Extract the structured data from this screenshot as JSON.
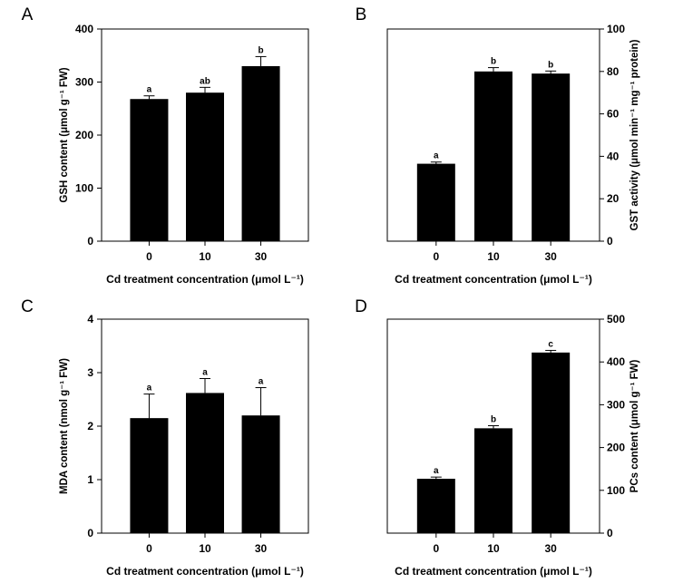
{
  "chart_data": [
    {
      "panel": "A",
      "type": "bar",
      "categories": [
        "0",
        "10",
        "30"
      ],
      "values": [
        268,
        280,
        330
      ],
      "errors": [
        6,
        10,
        18
      ],
      "significance": [
        "a",
        "ab",
        "b"
      ],
      "ylim": [
        0,
        400
      ],
      "yticks": [
        "0",
        "100",
        "200",
        "300",
        "400"
      ],
      "ylabel": "GSH content (μmol g⁻¹ FW)",
      "xlabel": "Cd treatment concentration (μmol L⁻¹)",
      "yaxis_side": "left",
      "color": "#000000"
    },
    {
      "panel": "B",
      "type": "bar",
      "categories": [
        "0",
        "10",
        "30"
      ],
      "values": [
        36.5,
        80,
        79
      ],
      "errors": [
        0.8,
        1.8,
        1.2
      ],
      "significance": [
        "a",
        "b",
        "b"
      ],
      "ylim": [
        0,
        100
      ],
      "yticks": [
        "0",
        "20",
        "40",
        "60",
        "80",
        "100"
      ],
      "ylabel": "GST activity (μmol min⁻¹ mg⁻¹ protein)",
      "xlabel": "Cd treatment concentration (μmol L⁻¹)",
      "yaxis_side": "right",
      "color": "#000000"
    },
    {
      "panel": "C",
      "type": "bar",
      "categories": [
        "0",
        "10",
        "30"
      ],
      "values": [
        2.15,
        2.62,
        2.2
      ],
      "errors": [
        0.45,
        0.27,
        0.52
      ],
      "significance": [
        "a",
        "a",
        "a"
      ],
      "ylim": [
        0,
        4
      ],
      "yticks": [
        "0",
        "1",
        "2",
        "3",
        "4"
      ],
      "ylabel": "MDA content (nmol g⁻¹ FW)",
      "xlabel": "Cd treatment concentration (μmol L⁻¹)",
      "yaxis_side": "left",
      "color": "#000000"
    },
    {
      "panel": "D",
      "type": "bar",
      "categories": [
        "0",
        "10",
        "30"
      ],
      "values": [
        127,
        245,
        422
      ],
      "errors": [
        4,
        6,
        5
      ],
      "significance": [
        "a",
        "b",
        "c"
      ],
      "ylim": [
        0,
        500
      ],
      "yticks": [
        "0",
        "100",
        "200",
        "300",
        "400",
        "500"
      ],
      "ylabel": "PCs content (μmol g⁻¹ FW)",
      "xlabel": "Cd treatment concentration (μmol L⁻¹)",
      "yaxis_side": "right",
      "color": "#000000"
    }
  ]
}
